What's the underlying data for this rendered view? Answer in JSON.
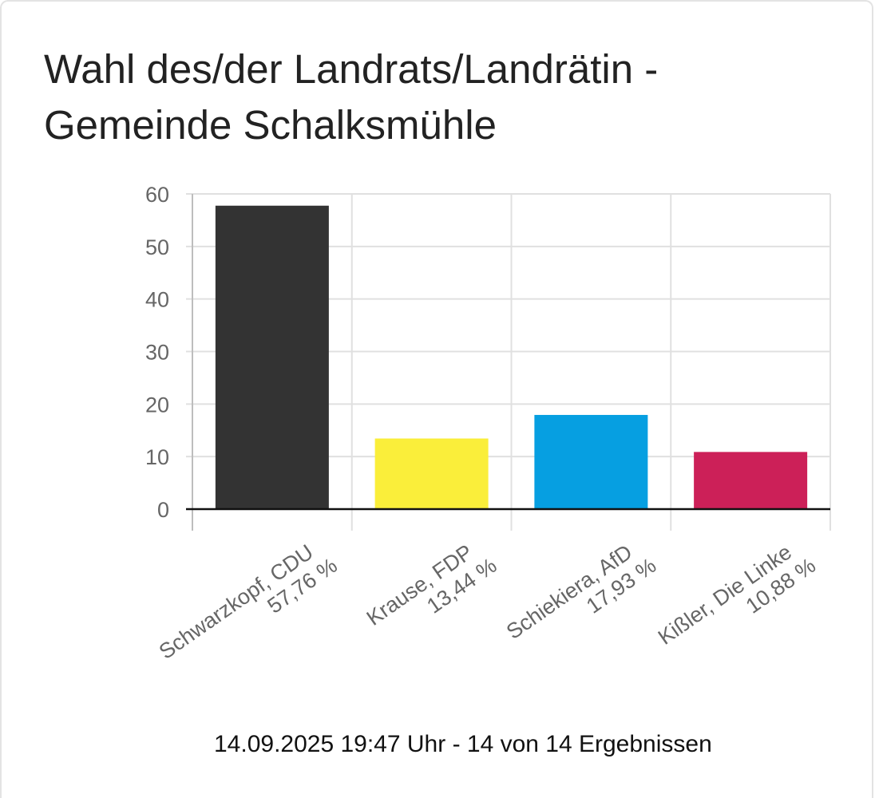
{
  "title": "Wahl des/der Landrats/Landrätin - Gemeinde Schalksmühle",
  "footer": "14.09.2025 19:47 Uhr - 14 von 14 Ergebnissen",
  "chart_data": {
    "type": "bar",
    "title": "Wahl des/der Landrats/Landrätin - Gemeinde Schalksmühle",
    "xlabel": "",
    "ylabel": "",
    "ylim": [
      0,
      60
    ],
    "yticks": [
      0,
      10,
      20,
      30,
      40,
      50,
      60
    ],
    "grid": true,
    "categories": [
      [
        "Schwarzkopf, CDU",
        "57,76 %"
      ],
      [
        "Krause, FDP",
        "13,44 %"
      ],
      [
        "Schiekiera, AfD",
        "17,93 %"
      ],
      [
        "Kißler, Die Linke",
        "10,88 %"
      ]
    ],
    "values": [
      57.76,
      13.44,
      17.93,
      10.88
    ],
    "colors": [
      "#333333",
      "#FAEE3A",
      "#069FE1",
      "#CC2058"
    ]
  }
}
